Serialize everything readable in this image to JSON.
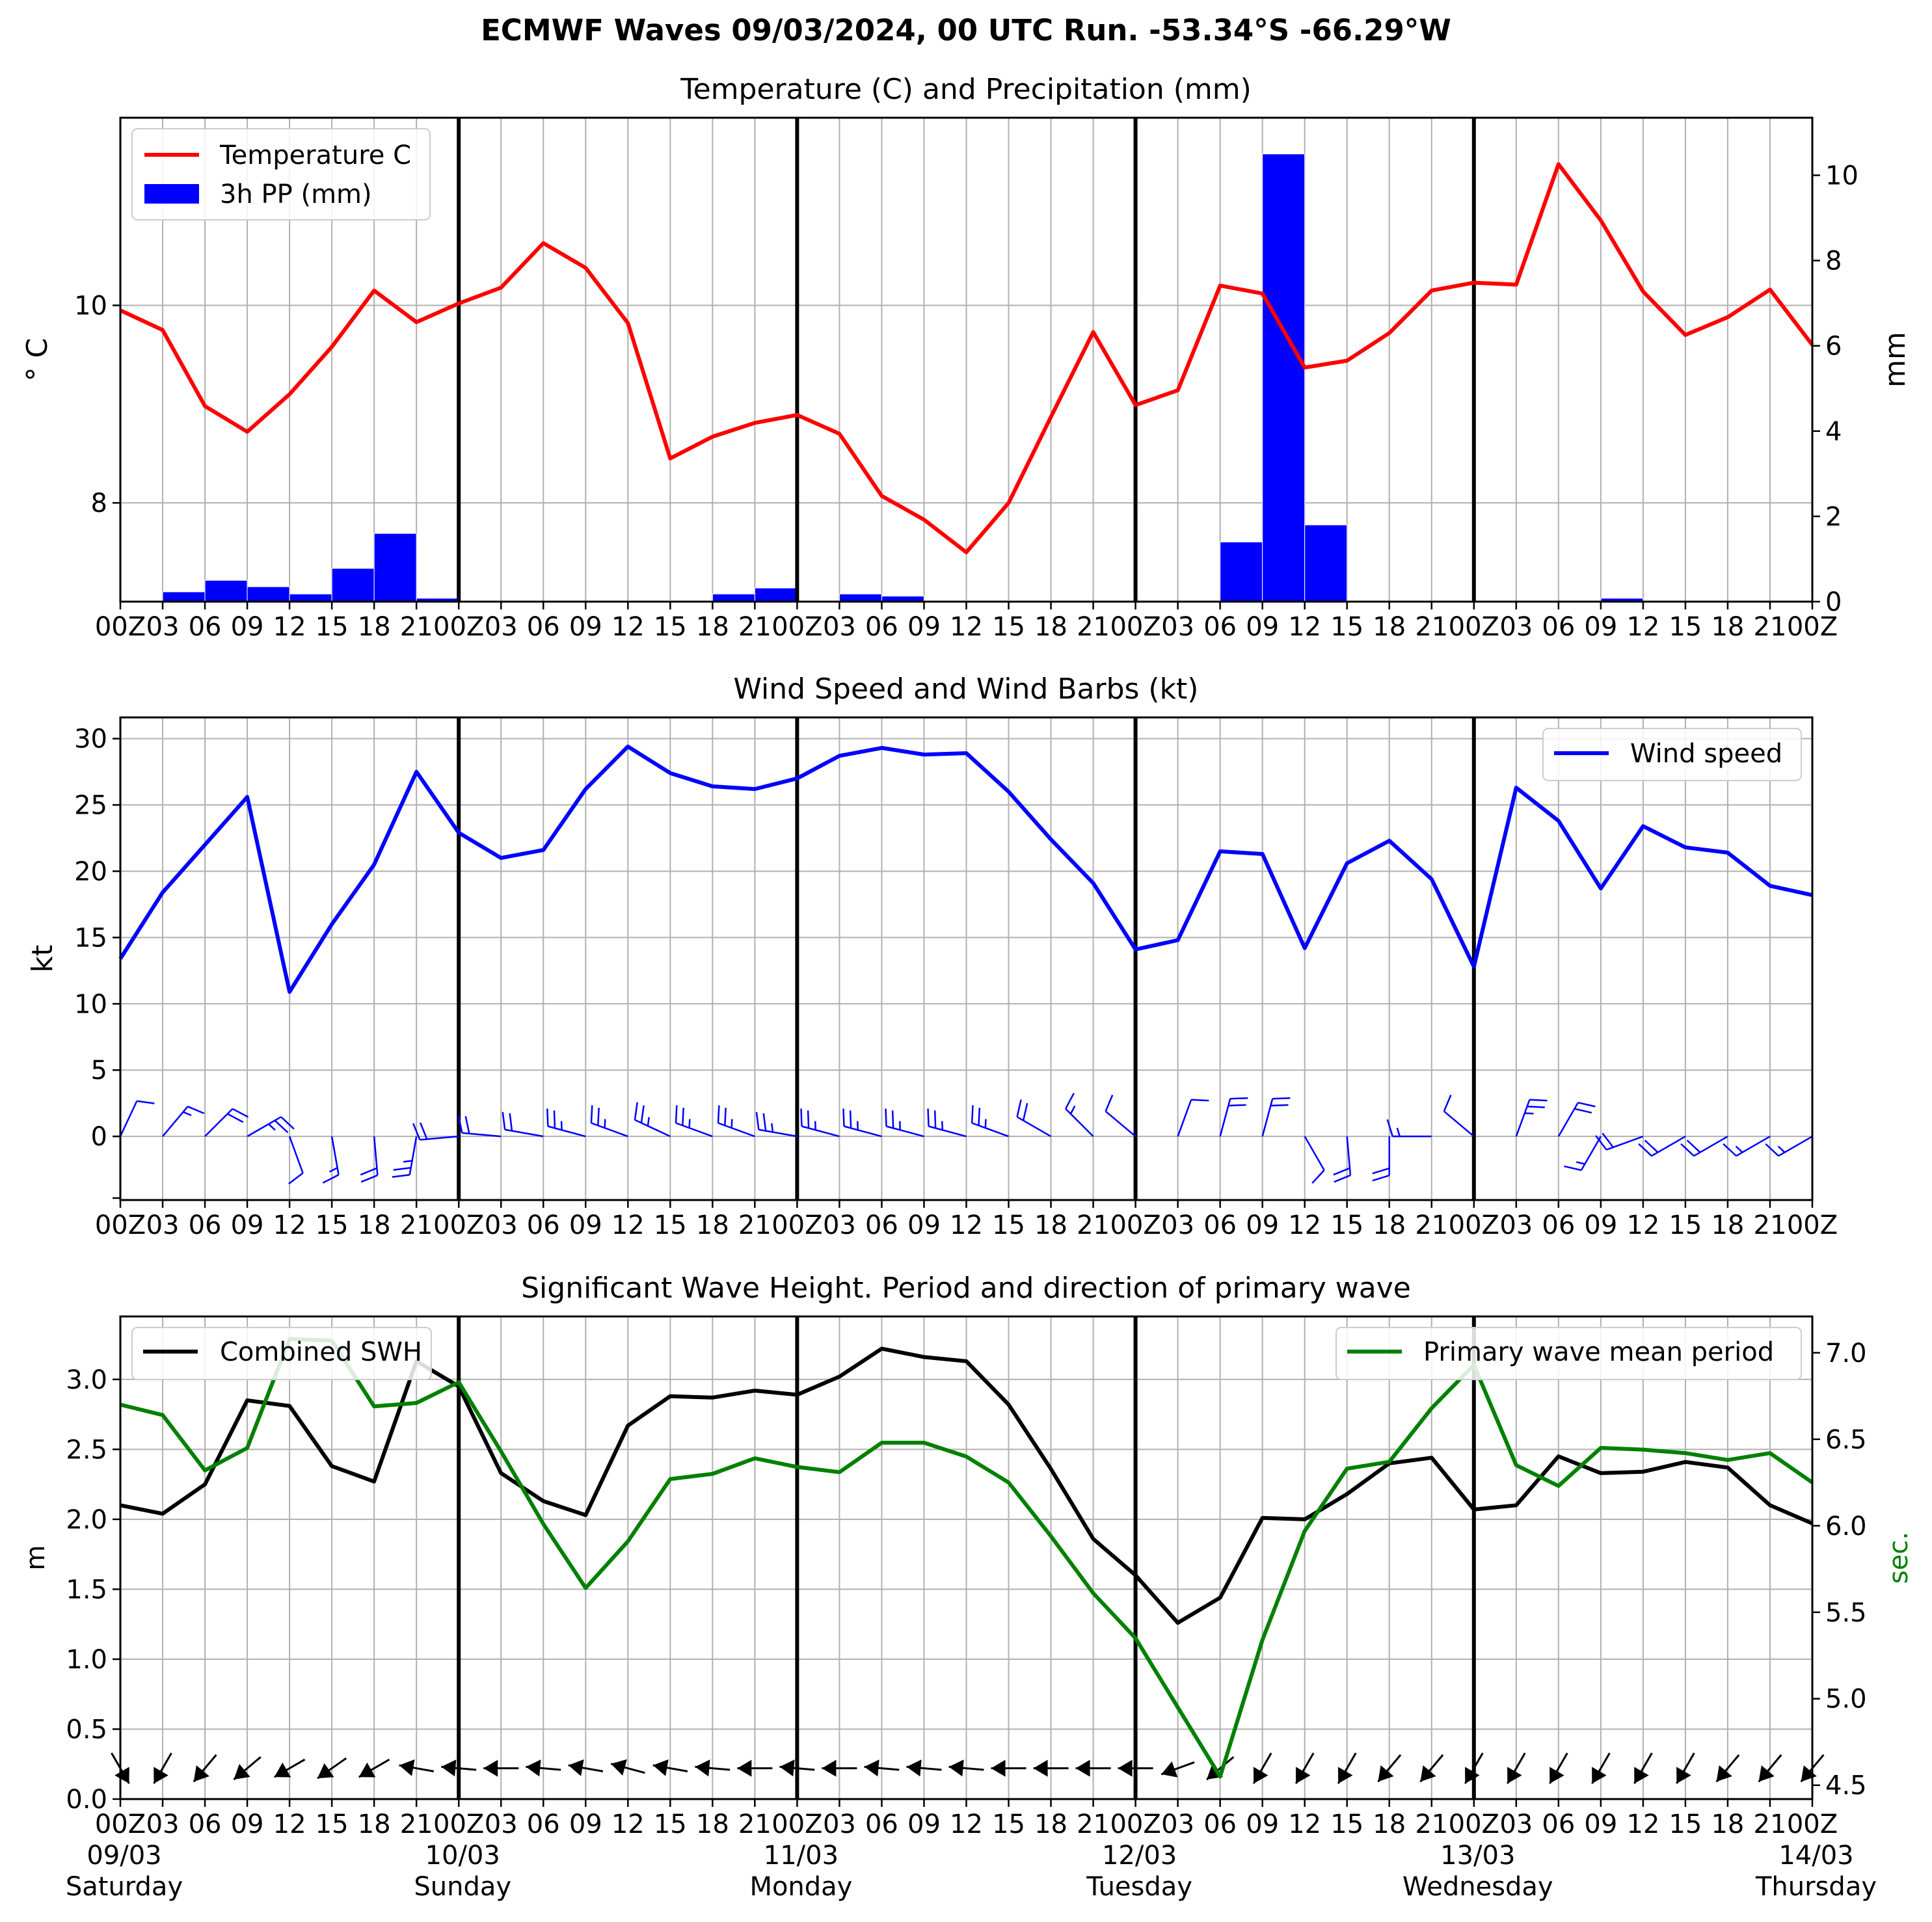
{
  "figure": {
    "title": "ECMWF Waves 09/03/2024, 00 UTC Run. -53.34°S -66.29°W"
  },
  "colors": {
    "temperature": "#ff0000",
    "precip": "#0000ff",
    "wind": "#0000ff",
    "swh": "#000000",
    "period": "#008000",
    "grid": "#b0b0b0"
  },
  "time_axis": {
    "tick_labels": [
      "00Z",
      "03",
      "06",
      "09",
      "12",
      "15",
      "18",
      "21",
      "00Z",
      "03",
      "06",
      "09",
      "12",
      "15",
      "18",
      "21",
      "00Z",
      "03",
      "06",
      "09",
      "12",
      "15",
      "18",
      "21",
      "00Z",
      "03",
      "06",
      "09",
      "12",
      "15",
      "18",
      "21",
      "00Z",
      "03",
      "06",
      "09",
      "12",
      "15",
      "18",
      "21",
      "00Z"
    ],
    "day_dates": [
      "09/03",
      "10/03",
      "11/03",
      "12/03",
      "13/03",
      "14/03"
    ],
    "day_names": [
      "Saturday",
      "Sunday",
      "Monday",
      "Tuesday",
      "Wednesday",
      "Thursday"
    ]
  },
  "chart_data": [
    {
      "type": "line",
      "title": "Temperature (C) and Precipitation (mm)",
      "ylabel": "$^\\circ$C",
      "ylabel_display": "° C",
      "ylabel_right": "mm",
      "ylim": [
        7.0,
        11.9
      ],
      "ylim_right": [
        0,
        11.35
      ],
      "yticks": [
        8,
        10
      ],
      "yticks_right": [
        0,
        2,
        4,
        6,
        8,
        10
      ],
      "legend": "upper left",
      "grid": true,
      "series": [
        {
          "name": "Temperature C",
          "type": "line",
          "axis": "left",
          "values": [
            9.95,
            9.75,
            8.98,
            8.72,
            9.1,
            9.58,
            10.15,
            9.83,
            10.02,
            10.18,
            10.63,
            10.38,
            9.82,
            8.45,
            8.67,
            8.81,
            8.89,
            8.7,
            8.07,
            7.83,
            7.5,
            8.0,
            8.87,
            9.73,
            8.99,
            9.14,
            10.2,
            10.12,
            9.37,
            9.44,
            9.72,
            10.15,
            10.23,
            10.21,
            11.43,
            10.86,
            10.14,
            9.7,
            9.88,
            10.16,
            9.6
          ]
        },
        {
          "name": "3h PP (mm)",
          "type": "bar",
          "axis": "right",
          "values": [
            0,
            0.23,
            0.5,
            0.35,
            0.18,
            0.78,
            1.6,
            0.08,
            0,
            0,
            0,
            0,
            0.03,
            0.03,
            0.18,
            0.32,
            0.03,
            0.18,
            0.13,
            0.03,
            0,
            0.03,
            0,
            0,
            0,
            0,
            1.4,
            10.5,
            1.8,
            0,
            0,
            0,
            0,
            0,
            0,
            0.08,
            0,
            0,
            0,
            0
          ]
        }
      ]
    },
    {
      "type": "line",
      "title": "Wind Speed and Wind Barbs (kt)",
      "ylabel": "kt",
      "ylim": [
        -4.8,
        31.6
      ],
      "yticks": [
        0,
        5,
        10,
        15,
        20,
        25,
        30
      ],
      "legend": "upper right",
      "grid": true,
      "series": [
        {
          "name": "Wind speed",
          "values": [
            13.4,
            18.4,
            22.0,
            25.6,
            10.9,
            16.0,
            20.5,
            27.5,
            22.9,
            21.0,
            21.6,
            26.2,
            29.4,
            27.4,
            26.4,
            26.2,
            27.0,
            28.7,
            29.3,
            28.8,
            28.9,
            26.0,
            22.4,
            19.1,
            14.1,
            14.8,
            21.5,
            21.3,
            14.2,
            20.6,
            22.3,
            19.4,
            12.8,
            26.3,
            23.8,
            18.7,
            23.4,
            21.8,
            21.4,
            18.9,
            18.2
          ]
        }
      ],
      "barb_directions_deg": [
        25,
        40,
        45,
        60,
        160,
        170,
        175,
        190,
        265,
        275,
        280,
        285,
        290,
        295,
        290,
        290,
        280,
        285,
        285,
        285,
        285,
        290,
        300,
        315,
        310,
        20,
        15,
        15,
        150,
        175,
        180,
        270,
        310,
        20,
        30,
        210,
        250,
        240,
        240,
        240,
        240
      ]
    },
    {
      "type": "line",
      "title": "Significant Wave Height. Period and direction of primary wave",
      "ylabel": "m",
      "ylabel_right": "sec.",
      "ylim": [
        0.0,
        3.45
      ],
      "ylim_right": [
        4.42,
        7.21
      ],
      "yticks": [
        0.0,
        0.5,
        1.0,
        1.5,
        2.0,
        2.5,
        3.0
      ],
      "yticks_right": [
        4.5,
        5.0,
        5.5,
        6.0,
        6.5,
        7.0
      ],
      "grid": true,
      "series": [
        {
          "name": "Combined SWH",
          "axis": "left",
          "legend": "upper left",
          "values": [
            2.1,
            2.04,
            2.25,
            2.85,
            2.81,
            2.38,
            2.27,
            3.13,
            2.95,
            2.33,
            2.13,
            2.03,
            2.67,
            2.88,
            2.87,
            2.92,
            2.89,
            3.02,
            3.22,
            3.16,
            3.13,
            2.82,
            2.36,
            1.86,
            1.6,
            1.26,
            1.44,
            2.01,
            2.0,
            2.18,
            2.4,
            2.44,
            2.07,
            2.1,
            2.45,
            2.33,
            2.34,
            2.41,
            2.37,
            2.1,
            1.97
          ]
        },
        {
          "name": "Primary wave mean period",
          "axis": "right",
          "legend": "upper right",
          "values": [
            6.7,
            6.64,
            6.32,
            6.45,
            7.08,
            7.07,
            6.69,
            6.71,
            6.83,
            6.43,
            6.01,
            5.64,
            5.91,
            6.27,
            6.3,
            6.39,
            6.34,
            6.31,
            6.48,
            6.48,
            6.4,
            6.25,
            5.94,
            5.61,
            5.35,
            4.95,
            4.55,
            5.34,
            5.97,
            6.33,
            6.37,
            6.68,
            6.93,
            6.35,
            6.23,
            6.45,
            6.44,
            6.42,
            6.38,
            6.42,
            6.25
          ]
        }
      ],
      "arrow_directions_deg": [
        30,
        330,
        320,
        310,
        300,
        305,
        300,
        260,
        265,
        270,
        265,
        260,
        255,
        260,
        265,
        270,
        265,
        270,
        265,
        265,
        265,
        270,
        270,
        270,
        270,
        290,
        310,
        330,
        330,
        330,
        320,
        320,
        330,
        330,
        330,
        330,
        330,
        330,
        320,
        320,
        320
      ]
    }
  ]
}
